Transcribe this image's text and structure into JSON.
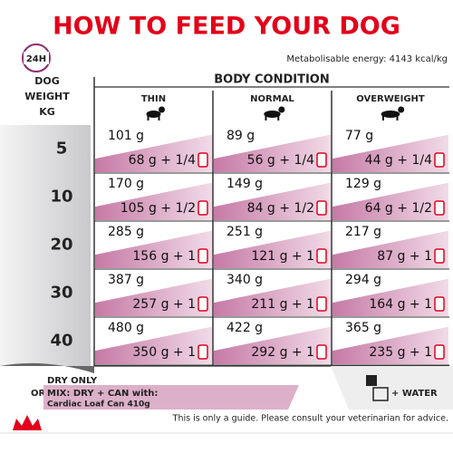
{
  "title": "HOW TO FEED YOUR DOG",
  "badge": "24H",
  "energy": "Metabolisable energy: 4143 kcal/kg",
  "header": {
    "weight_label": [
      "DOG",
      "WEIGHT",
      "KG"
    ],
    "body_condition": "BODY CONDITION",
    "columns": [
      "THIN",
      "NORMAL",
      "OVERWEIGHT"
    ]
  },
  "rows": [
    {
      "weight": "5",
      "cells": [
        {
          "dry": "101 g",
          "mix": "68 g + 1/4"
        },
        {
          "dry": "89 g",
          "mix": "56 g + 1/4"
        },
        {
          "dry": "77 g",
          "mix": "44 g + 1/4"
        }
      ]
    },
    {
      "weight": "10",
      "cells": [
        {
          "dry": "170 g",
          "mix": "105 g + 1/2"
        },
        {
          "dry": "149 g",
          "mix": "84 g + 1/2"
        },
        {
          "dry": "129 g",
          "mix": "64 g + 1/2"
        }
      ]
    },
    {
      "weight": "20",
      "cells": [
        {
          "dry": "285 g",
          "mix": "156 g + 1"
        },
        {
          "dry": "251 g",
          "mix": "121 g + 1"
        },
        {
          "dry": "217 g",
          "mix": "87 g + 1"
        }
      ]
    },
    {
      "weight": "30",
      "cells": [
        {
          "dry": "387 g",
          "mix": "257 g + 1"
        },
        {
          "dry": "340 g",
          "mix": "211 g + 1"
        },
        {
          "dry": "294 g",
          "mix": "164 g + 1"
        }
      ]
    },
    {
      "weight": "40",
      "cells": [
        {
          "dry": "480 g",
          "mix": "350 g + 1"
        },
        {
          "dry": "422 g",
          "mix": "292 g + 1"
        },
        {
          "dry": "365 g",
          "mix": "235 g + 1"
        }
      ]
    }
  ],
  "legend": {
    "dry_only": "DRY ONLY",
    "or": "OR",
    "mix": "MIX: DRY + CAN with:",
    "can": "Cardiac Loaf Can 410g",
    "water": "+ WATER"
  },
  "footer": "This is only a guide. Please consult your veterinarian for advice."
}
